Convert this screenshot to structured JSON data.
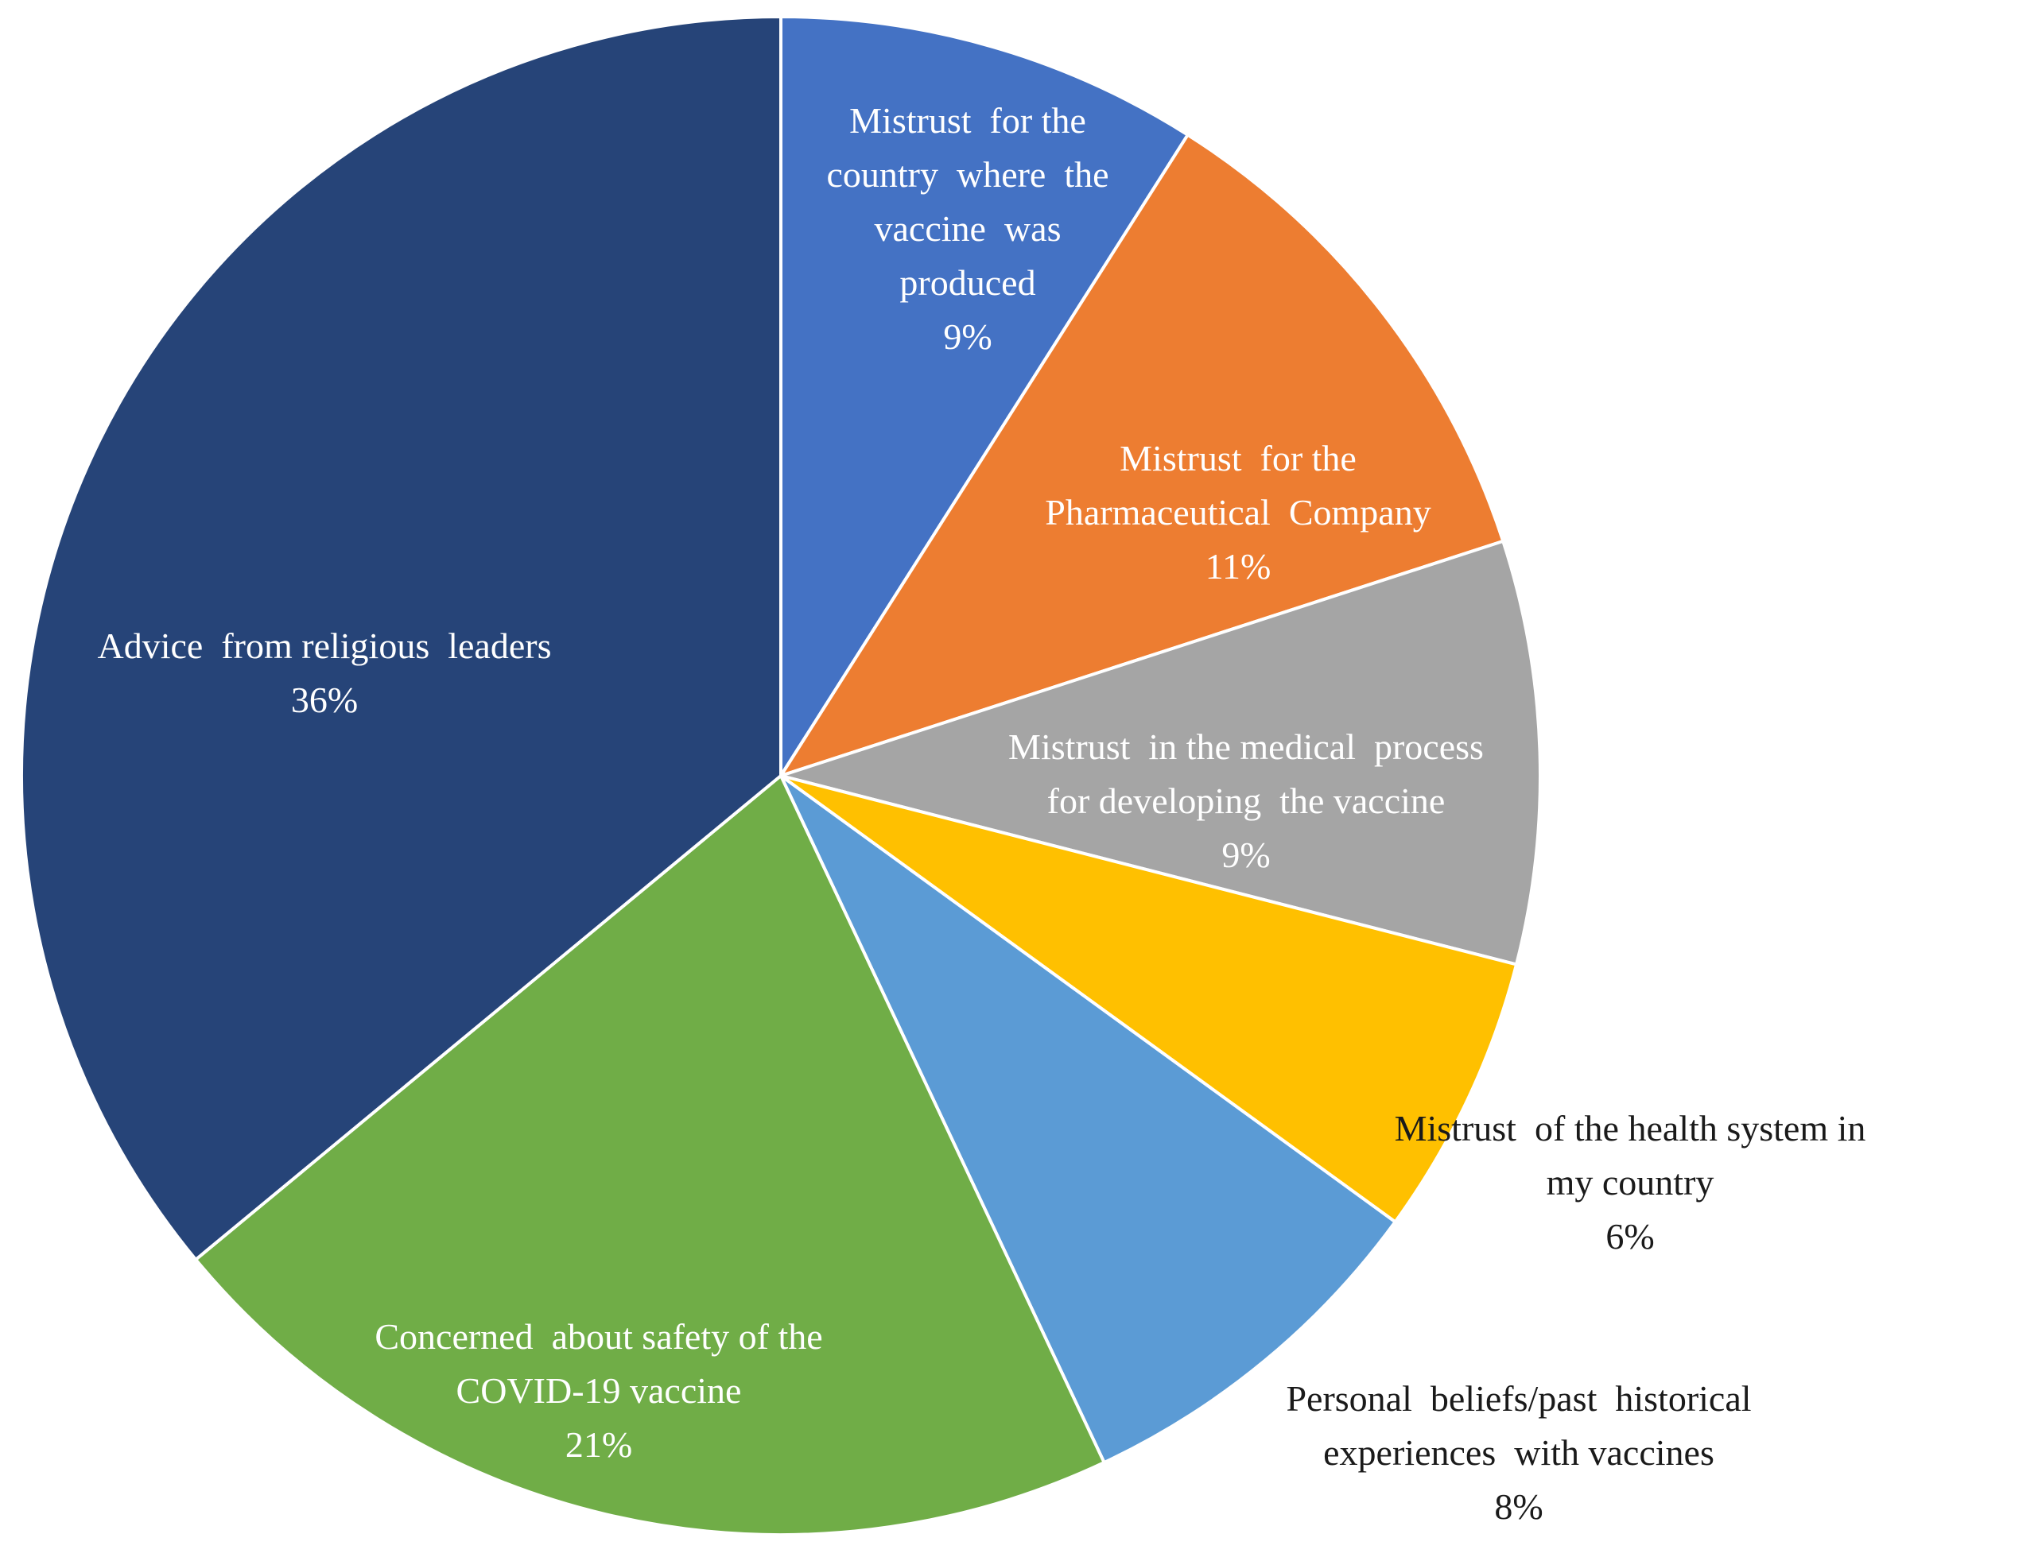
{
  "chart_data": {
    "type": "pie",
    "start_angle_deg": 0,
    "direction": "clockwise",
    "slices": [
      {
        "label_lines": [
          "Mistrust  for the",
          "country  where  the",
          "vaccine  was",
          "produced"
        ],
        "value": 9,
        "value_label": "9%",
        "color": "#4472C4",
        "text_color": "#ffffff"
      },
      {
        "label_lines": [
          "Mistrust  for the",
          "Pharmaceutical  Company"
        ],
        "value": 11,
        "value_label": "11%",
        "color": "#ED7D31",
        "text_color": "#ffffff"
      },
      {
        "label_lines": [
          "Mistrust  in the medical  process",
          "for developing  the vaccine"
        ],
        "value": 9,
        "value_label": "9%",
        "color": "#A5A5A5",
        "text_color": "#ffffff"
      },
      {
        "label_lines": [
          "Mistrust  of the health system in",
          "my country"
        ],
        "value": 6,
        "value_label": "6%",
        "color": "#FFC000",
        "text_color": "#1a1a1a"
      },
      {
        "label_lines": [
          "Personal  beliefs/past  historical",
          "experiences  with vaccines"
        ],
        "value": 8,
        "value_label": "8%",
        "color": "#5B9BD5",
        "text_color": "#1a1a1a"
      },
      {
        "label_lines": [
          "Concerned  about safety of the",
          "COVID-19 vaccine"
        ],
        "value": 21,
        "value_label": "21%",
        "color": "#70AD47",
        "text_color": "#ffffff"
      },
      {
        "label_lines": [
          "Advice  from religious  leaders"
        ],
        "value": 36,
        "value_label": "36%",
        "color": "#264478",
        "text_color": "#ffffff"
      }
    ]
  }
}
